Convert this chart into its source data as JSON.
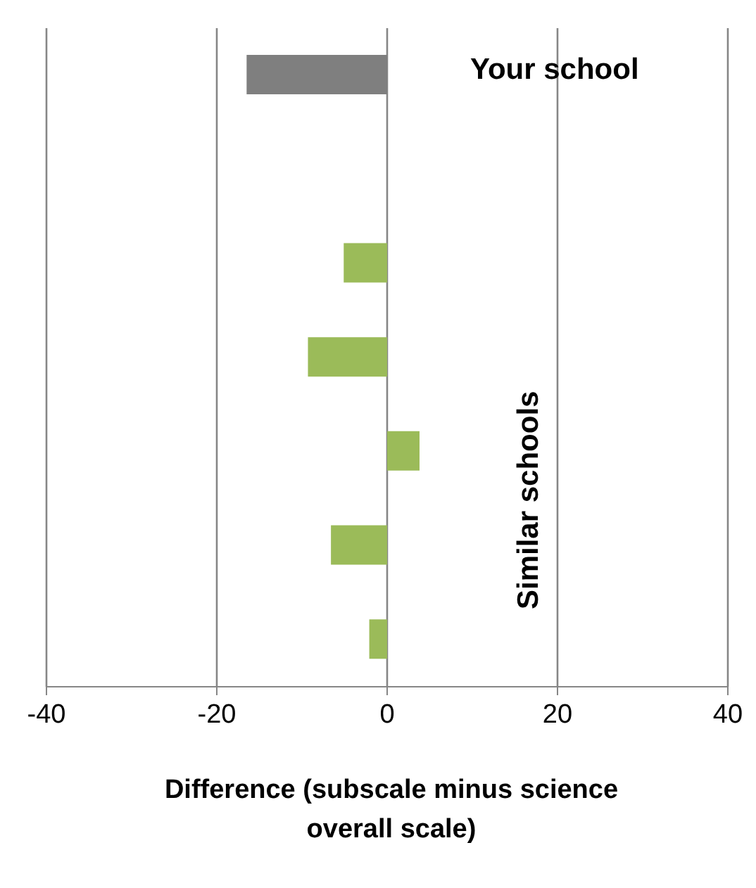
{
  "chart_data": {
    "type": "bar",
    "orientation": "horizontal",
    "xlabel": "Difference (subscale minus science overall scale)",
    "categories": [
      null,
      null,
      null,
      null,
      null,
      null,
      null
    ],
    "values": [
      -16.5,
      null,
      -5.1,
      -9.3,
      3.8,
      -6.6,
      -2.1
    ],
    "colors": [
      "#7f7f7f",
      "#9bbb59",
      "#9bbb59",
      "#9bbb59",
      "#9bbb59",
      "#9bbb59",
      "#9bbb59"
    ],
    "xlim": [
      -40,
      40
    ],
    "xticks": [
      -40,
      -20,
      0,
      20,
      40
    ],
    "grid": "x",
    "annotations": [
      "Your school",
      "Similar schools"
    ]
  }
}
